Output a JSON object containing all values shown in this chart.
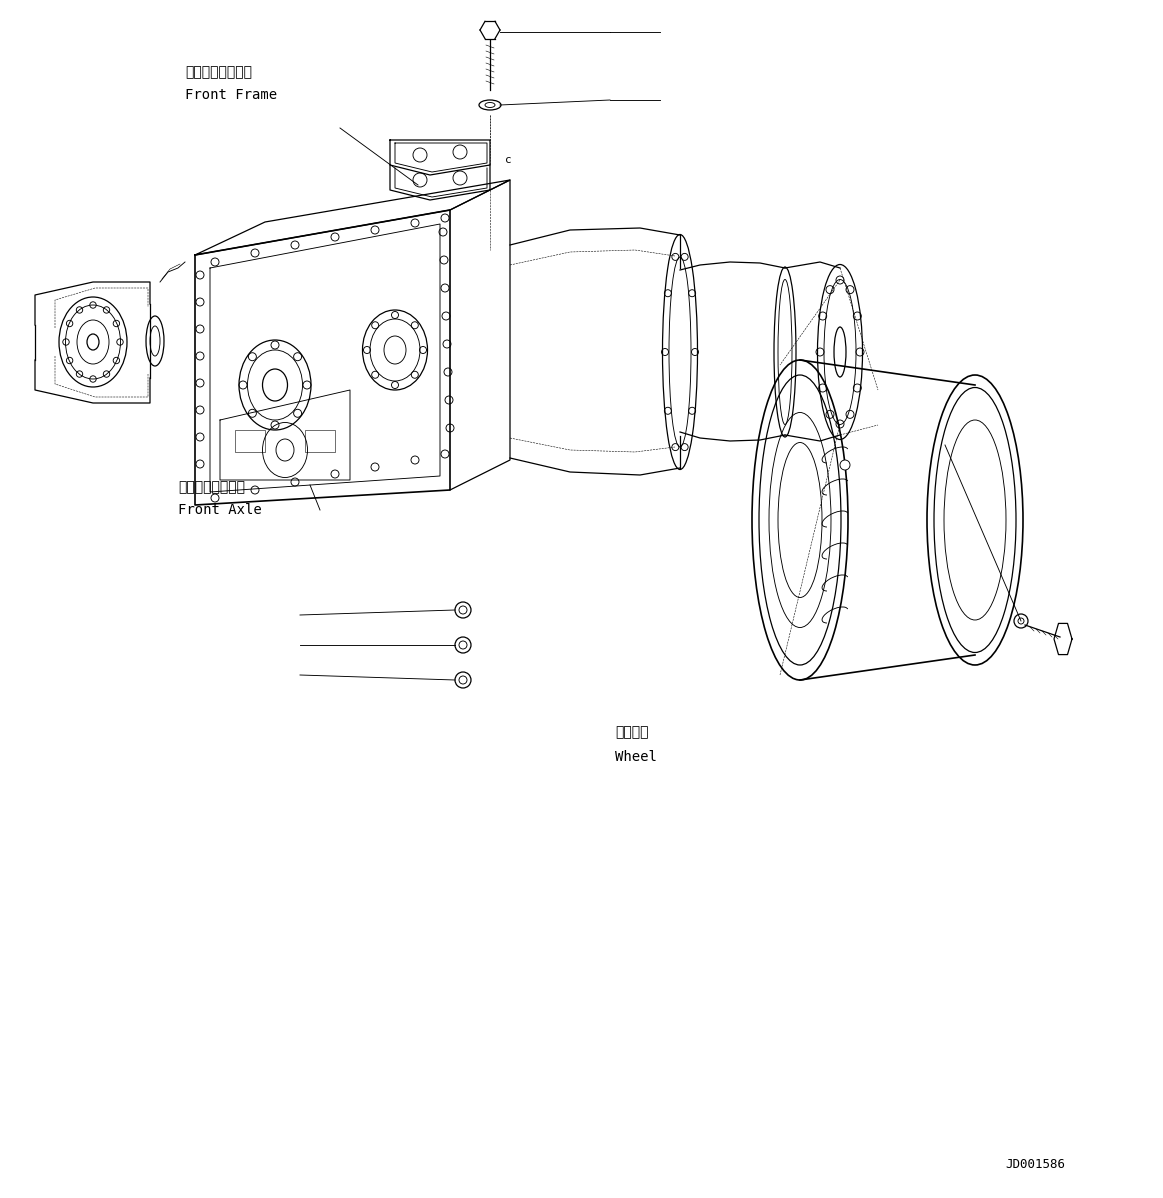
{
  "bg_color": "#ffffff",
  "line_color": "#000000",
  "fig_width": 11.63,
  "fig_height": 11.98,
  "dpi": 100,
  "label_front_frame_jp": "フロントフレーム",
  "label_front_frame_en": "Front Frame",
  "label_front_axle_jp": "フロントアクスル",
  "label_front_axle_en": "Front Axle",
  "label_wheel_jp": "ホイール",
  "label_wheel_en": "Wheel",
  "drawing_id": "JD001586",
  "font_size_label": 10,
  "font_size_id": 9,
  "font_size_c": 8
}
